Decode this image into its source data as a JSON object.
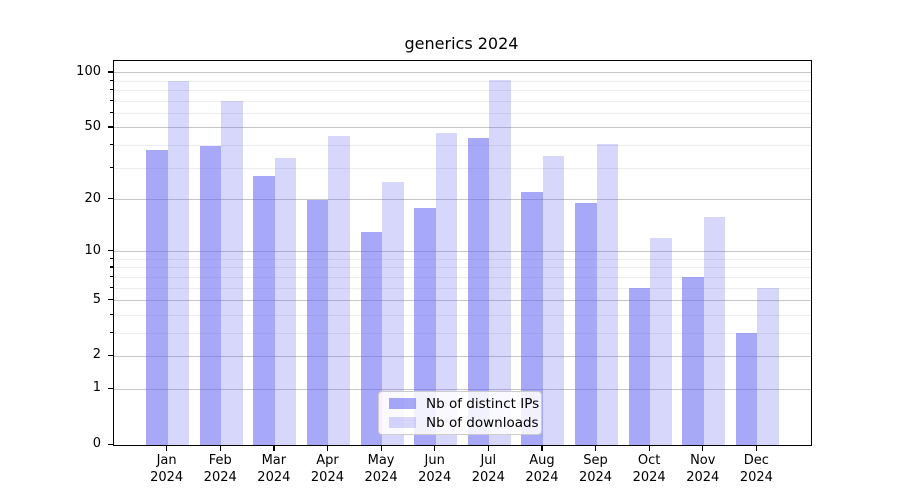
{
  "chart_data": {
    "type": "bar",
    "title": "generics 2024",
    "categories": [
      "Jan",
      "Feb",
      "Mar",
      "Apr",
      "May",
      "Jun",
      "Jul",
      "Aug",
      "Sep",
      "Oct",
      "Nov",
      "Dec"
    ],
    "category_year_line": "2024",
    "series": [
      {
        "name": "Nb of distinct IPs",
        "color_hex_over_white": "#a8a8f8",
        "color_rgba": "rgba(102,102,242,0.57)",
        "values": [
          38,
          40,
          27,
          20,
          13,
          18,
          44,
          22,
          19,
          6,
          7,
          3
        ]
      },
      {
        "name": "Nb of downloads",
        "color_hex_over_white": "#d9d9f9",
        "color_rgba": "rgba(102,102,242,0.26)",
        "values": [
          90,
          70,
          34,
          45,
          25,
          47,
          92,
          35,
          41,
          12,
          16,
          6
        ]
      }
    ],
    "base_color": "#6666f2",
    "y_axis": {
      "scale": "log10(value+1)",
      "major_ticks": [
        0,
        1,
        2,
        5,
        10,
        20,
        50,
        100
      ],
      "minor_gridlines": [
        3,
        4,
        6,
        7,
        8,
        9,
        30,
        40,
        60,
        70,
        80,
        90
      ],
      "ylim": [
        0,
        116
      ],
      "grid": true
    },
    "x_axis": {
      "tick_labels_two_lines": true
    },
    "legend": {
      "position": "lower center",
      "entries": [
        "Nb of distinct IPs",
        "Nb of downloads"
      ]
    }
  }
}
